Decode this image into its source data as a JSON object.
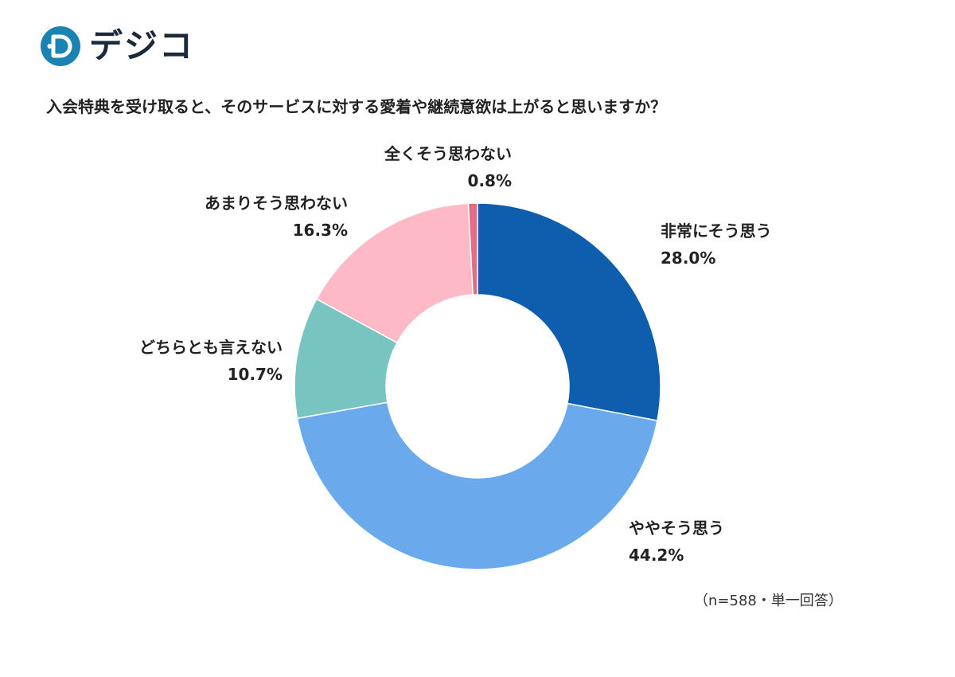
{
  "brand": {
    "name": "デジコ",
    "logo_icon": "digico-d-icon",
    "colors": {
      "mark": "#1a83b4",
      "dots": [
        "#39b7a4",
        "#7bc9d6"
      ]
    }
  },
  "header": {
    "title": "入会特典を受け取ると、そのサービスに対する愛着や継続意欲は上がると思いますか？"
  },
  "chart_data": {
    "type": "pie",
    "subtype": "donut",
    "title": "入会特典を受け取ると、そのサービスに対する愛着や継続意欲は上がると思いますか？",
    "unit": "%",
    "slices": [
      {
        "label": "非常にそう思う",
        "value": 28.0,
        "value_text": "28.0%",
        "color": "#0f5ead"
      },
      {
        "label": "ややそう思う",
        "value": 44.2,
        "value_text": "44.2%",
        "color": "#6aaaec"
      },
      {
        "label": "どちらとも言えない",
        "value": 10.7,
        "value_text": "10.7%",
        "color": "#77c4c0"
      },
      {
        "label": "あまりそう思わない",
        "value": 16.3,
        "value_text": "16.3%",
        "color": "#fdb9c6"
      },
      {
        "label": "全くそう思わない",
        "value": 0.8,
        "value_text": "0.8%",
        "color": "#df6e86"
      }
    ],
    "start": "12 o'clock",
    "direction": "clockwise",
    "legend": "none",
    "data_labels": "outside"
  },
  "footer": {
    "note": "（n=588・単一回答）"
  }
}
